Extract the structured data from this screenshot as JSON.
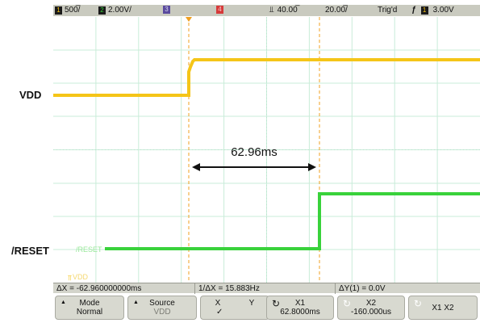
{
  "topbar": {
    "ch1_num": "1",
    "ch1_scale": "500̅/",
    "ch2_num": "2",
    "ch2_scale": "2.00V/",
    "ch3_num": "3",
    "ch4_num": "4",
    "time_delay": "40.00̅",
    "time_scale": "20.00̅/",
    "trig_status": "Trig'd",
    "trig_source": "1",
    "trig_level": "3.00V",
    "colors": {
      "ch1": "#f5c518",
      "ch2": "#39d23b",
      "ch3": "#5a4a9e",
      "ch4": "#d63a3a"
    }
  },
  "labels": {
    "vdd": "VDD",
    "reset": "/RESET",
    "reset_trace_tag": "/RESET",
    "vdd_trace_tag": "VDD",
    "interval": "62.96ms"
  },
  "measurements": {
    "delta_x": "ΔX = -62.960000000ms",
    "inv_delta_x": "1/ΔX = 15.883Hz",
    "delta_y": "ΔY(1) = 0.0V"
  },
  "softkeys": {
    "mode_label": "Mode",
    "mode_value": "Normal",
    "source_label": "Source",
    "source_value": "VDD",
    "x_label": "X",
    "y_label": "Y",
    "x1_label": "X1",
    "x1_value": "62.8000ms",
    "x2_label": "X2",
    "x2_value": "-160.000us",
    "x1x2_label": "X1 X2"
  }
}
